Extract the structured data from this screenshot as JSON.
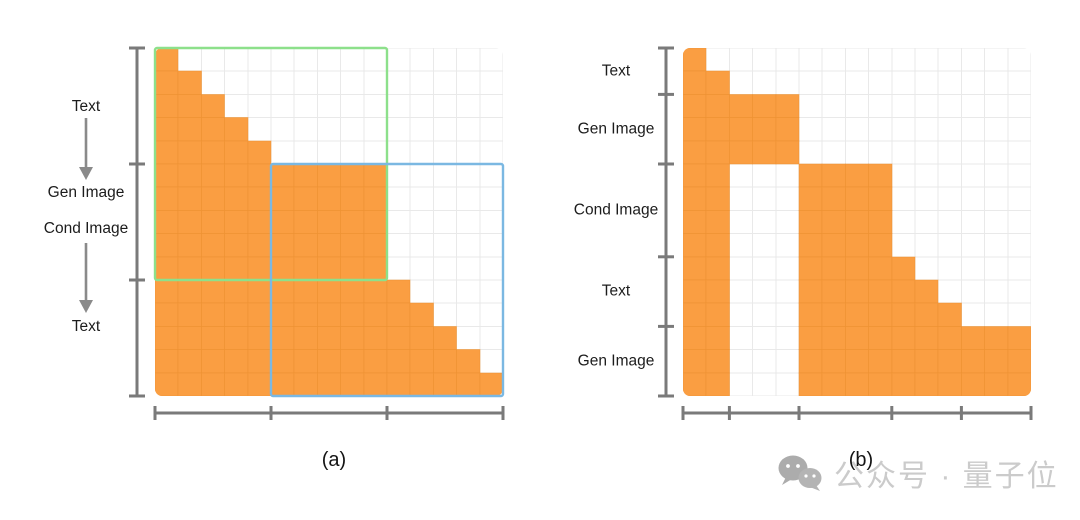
{
  "figure": {
    "panels": [
      {
        "caption": "(a)",
        "grid": {
          "rows": 15,
          "cols": 15
        },
        "row_tick_groups": [
          5,
          5,
          5
        ],
        "col_tick_groups": [
          5,
          5,
          5
        ],
        "side_labels": [
          "Text",
          "Gen Image",
          "Cond Image",
          "Text"
        ],
        "side_arrows_count": 2,
        "mask_rows": [
          [
            [
              1,
              1
            ]
          ],
          [
            [
              1,
              2
            ]
          ],
          [
            [
              1,
              3
            ]
          ],
          [
            [
              1,
              4
            ]
          ],
          [
            [
              1,
              5
            ]
          ],
          [
            [
              1,
              10
            ]
          ],
          [
            [
              1,
              10
            ]
          ],
          [
            [
              1,
              10
            ]
          ],
          [
            [
              1,
              10
            ]
          ],
          [
            [
              1,
              10
            ]
          ],
          [
            [
              1,
              11
            ]
          ],
          [
            [
              1,
              12
            ]
          ],
          [
            [
              1,
              13
            ]
          ],
          [
            [
              1,
              14
            ]
          ],
          [
            [
              1,
              15
            ]
          ]
        ],
        "overlays": [
          {
            "name": "overlay-box-green",
            "rows": [
              1,
              10
            ],
            "cols": [
              1,
              10
            ],
            "color": "#8de08b"
          },
          {
            "name": "overlay-box-blue",
            "rows": [
              6,
              15
            ],
            "cols": [
              6,
              15
            ],
            "color": "#7bb8e2"
          }
        ]
      },
      {
        "caption": "(b)",
        "grid": {
          "rows": 15,
          "cols": 15
        },
        "row_tick_groups": [
          2,
          3,
          4,
          3,
          3
        ],
        "col_tick_groups": [
          2,
          3,
          4,
          3,
          3
        ],
        "side_labels": [
          "Text",
          "Gen Image",
          "Cond Image",
          "Text",
          "Gen Image"
        ],
        "mask_rows": [
          [
            [
              1,
              1
            ]
          ],
          [
            [
              1,
              2
            ]
          ],
          [
            [
              1,
              5
            ]
          ],
          [
            [
              1,
              5
            ]
          ],
          [
            [
              1,
              5
            ]
          ],
          [
            [
              1,
              2
            ],
            [
              6,
              9
            ]
          ],
          [
            [
              1,
              2
            ],
            [
              6,
              9
            ]
          ],
          [
            [
              1,
              2
            ],
            [
              6,
              9
            ]
          ],
          [
            [
              1,
              2
            ],
            [
              6,
              9
            ]
          ],
          [
            [
              1,
              2
            ],
            [
              6,
              10
            ]
          ],
          [
            [
              1,
              2
            ],
            [
              6,
              11
            ]
          ],
          [
            [
              1,
              2
            ],
            [
              6,
              12
            ]
          ],
          [
            [
              1,
              2
            ],
            [
              6,
              15
            ]
          ],
          [
            [
              1,
              2
            ],
            [
              6,
              15
            ]
          ],
          [
            [
              1,
              2
            ],
            [
              6,
              15
            ]
          ]
        ],
        "overlays": []
      }
    ],
    "colors": {
      "mask_fill": "#fa9e42",
      "mask_grid_line": "#ec8f30",
      "grid_line": "#e9e9e9",
      "axis": "#7a7a7a",
      "arrow": "#8a8a8a",
      "label_text": "#1c1c1c"
    }
  },
  "watermark": {
    "text": "公众号 · 量子位",
    "icon": "wechat-chat-bubbles"
  }
}
